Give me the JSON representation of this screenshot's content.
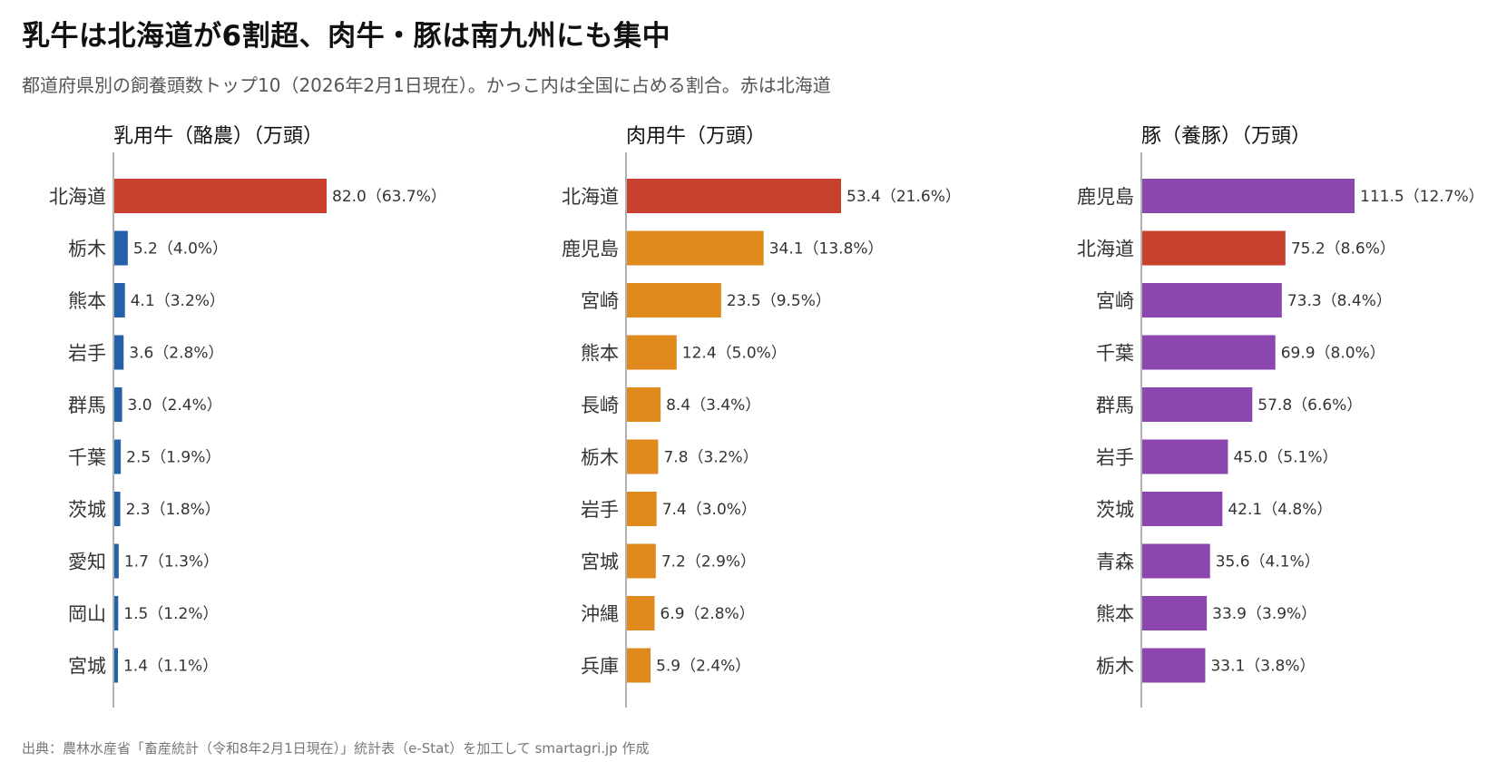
{
  "header": {
    "title": "乳牛は北海道が6割超、肉牛・豚は南九州にも集中",
    "subtitle": "都道府県別の飼養頭数トップ10（2026年2月1日現在）。かっこ内は全国に占める割合。赤は北海道"
  },
  "footer": {
    "source": "出典：農林水産省「畜産統計（令和8年2月1日現在）」統計表（e-Stat）を加工して smartagri.jp 作成"
  },
  "colors": {
    "hokkaido": "#c8412f",
    "dairy": "#2461a8",
    "beef": "#e08a1e",
    "pig": "#8c46b0",
    "axis": "#999999",
    "label": "#333333"
  },
  "chart_data": [
    {
      "type": "bar",
      "orientation": "horizontal",
      "title": "乳用牛（酪農）（万頭）",
      "categories": [
        "北海道",
        "栃木",
        "熊本",
        "岩手",
        "群馬",
        "千葉",
        "茨城",
        "愛知",
        "岡山",
        "宮城"
      ],
      "values": [
        82.0,
        5.2,
        4.1,
        3.6,
        3.0,
        2.5,
        2.3,
        1.7,
        1.5,
        1.4
      ],
      "shares": [
        "63.7%",
        "4.0%",
        "3.2%",
        "2.8%",
        "2.4%",
        "1.9%",
        "1.8%",
        "1.3%",
        "1.2%",
        "1.1%"
      ],
      "color_key": "dairy"
    },
    {
      "type": "bar",
      "orientation": "horizontal",
      "title": "肉用牛（万頭）",
      "categories": [
        "北海道",
        "鹿児島",
        "宮崎",
        "熊本",
        "長崎",
        "栃木",
        "岩手",
        "宮城",
        "沖縄",
        "兵庫"
      ],
      "values": [
        53.4,
        34.1,
        23.5,
        12.4,
        8.4,
        7.8,
        7.4,
        7.2,
        6.9,
        5.9
      ],
      "shares": [
        "21.6%",
        "13.8%",
        "9.5%",
        "5.0%",
        "3.4%",
        "3.2%",
        "3.0%",
        "2.9%",
        "2.8%",
        "2.4%"
      ],
      "color_key": "beef"
    },
    {
      "type": "bar",
      "orientation": "horizontal",
      "title": "豚（養豚）（万頭）",
      "categories": [
        "鹿児島",
        "北海道",
        "宮崎",
        "千葉",
        "群馬",
        "岩手",
        "茨城",
        "青森",
        "熊本",
        "栃木"
      ],
      "values": [
        111.5,
        75.2,
        73.3,
        69.9,
        57.8,
        45.0,
        42.1,
        35.6,
        33.9,
        33.1
      ],
      "shares": [
        "12.7%",
        "8.6%",
        "8.4%",
        "8.0%",
        "6.6%",
        "5.1%",
        "4.8%",
        "4.1%",
        "3.9%",
        "3.8%"
      ],
      "color_key": "pig"
    }
  ]
}
